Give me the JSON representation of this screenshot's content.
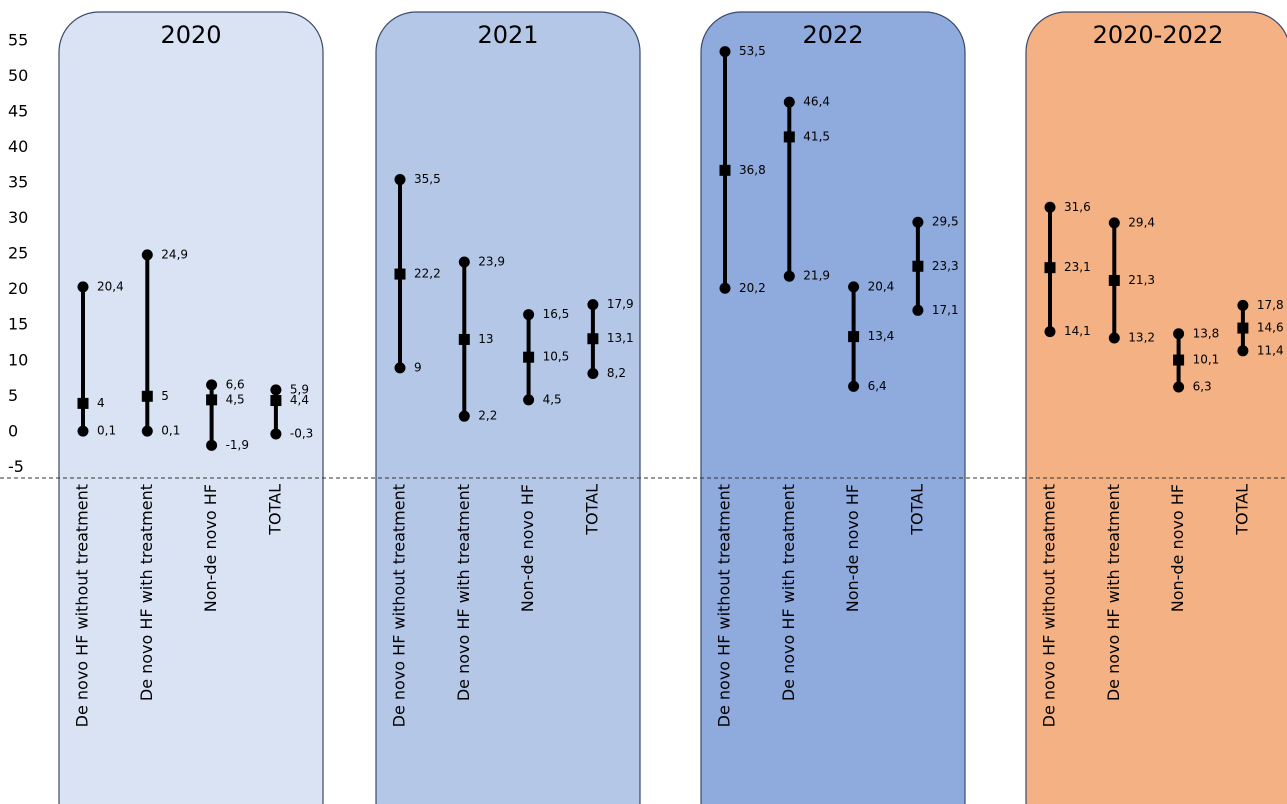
{
  "chart_data": [
    {
      "type": "interval",
      "title": "2020",
      "color": "#dae3f3",
      "categories": [
        "De novo HF without treatment",
        "De novo HF with treatment",
        "Non-de novo HF",
        "TOTAL"
      ],
      "ylim": [
        -6.5,
        55
      ],
      "yticks": [
        -5,
        0,
        5,
        10,
        15,
        20,
        25,
        30,
        35,
        40,
        45,
        50,
        55
      ],
      "estimate": {
        "values": [
          4,
          5,
          4.5,
          4.4
        ],
        "value_labels": [
          "4",
          "5",
          "4,5",
          "4,4"
        ]
      },
      "lower": {
        "values": [
          0.1,
          0.1,
          -1.9,
          -0.3
        ],
        "value_labels": [
          "0,1",
          "0,1",
          "-1,9",
          "-0,3"
        ]
      },
      "upper": {
        "values": [
          20.4,
          24.9,
          6.6,
          5.9
        ],
        "value_labels": [
          "20,4",
          "24,9",
          "6,6",
          "5,9"
        ]
      }
    },
    {
      "type": "interval",
      "title": "2021",
      "color": "#b4c7e7",
      "categories": [
        "De novo HF without treatment",
        "De novo HF with treatment",
        "Non-de novo HF",
        "TOTAL"
      ],
      "estimate": {
        "values": [
          22.2,
          13,
          10.5,
          13.1
        ],
        "value_labels": [
          "22,2",
          "13",
          "10,5",
          "13,1"
        ]
      },
      "lower": {
        "values": [
          9,
          2.2,
          4.5,
          8.2
        ],
        "value_labels": [
          "9",
          "2,2",
          "4,5",
          "8,2"
        ]
      },
      "upper": {
        "values": [
          35.5,
          23.9,
          16.5,
          17.9
        ],
        "value_labels": [
          "35,5",
          "23,9",
          "16,5",
          "17,9"
        ]
      }
    },
    {
      "type": "interval",
      "title": "2022",
      "color": "#8faadc",
      "categories": [
        "De novo HF without treatment",
        "De novo HF with treatment",
        "Non-de novo HF",
        "TOTAL"
      ],
      "estimate": {
        "values": [
          36.8,
          41.5,
          13.4,
          23.3
        ],
        "value_labels": [
          "36,8",
          "41,5",
          "13,4",
          "23,3"
        ]
      },
      "lower": {
        "values": [
          20.2,
          21.9,
          6.4,
          17.1
        ],
        "value_labels": [
          "20,2",
          "21,9",
          "6,4",
          "17,1"
        ]
      },
      "upper": {
        "values": [
          53.5,
          46.4,
          20.4,
          29.5
        ],
        "value_labels": [
          "53,5",
          "46,4",
          "20,4",
          "29,5"
        ]
      }
    },
    {
      "type": "interval",
      "title": "2020-2022",
      "color": "#f4b183",
      "categories": [
        "De novo HF without treatment",
        "De novo HF with treatment",
        "Non-de novo HF",
        "TOTAL"
      ],
      "estimate": {
        "values": [
          23.1,
          21.3,
          10.1,
          14.6
        ],
        "value_labels": [
          "23,1",
          "21,3",
          "10,1",
          "14,6"
        ]
      },
      "lower": {
        "values": [
          14.1,
          13.2,
          6.3,
          11.4
        ],
        "value_labels": [
          "14,1",
          "13,2",
          "6,3",
          "11,4"
        ]
      },
      "upper": {
        "values": [
          31.6,
          29.4,
          13.8,
          17.8
        ],
        "value_labels": [
          "31,6",
          "29,4",
          "13,8",
          "17,8"
        ]
      }
    }
  ]
}
